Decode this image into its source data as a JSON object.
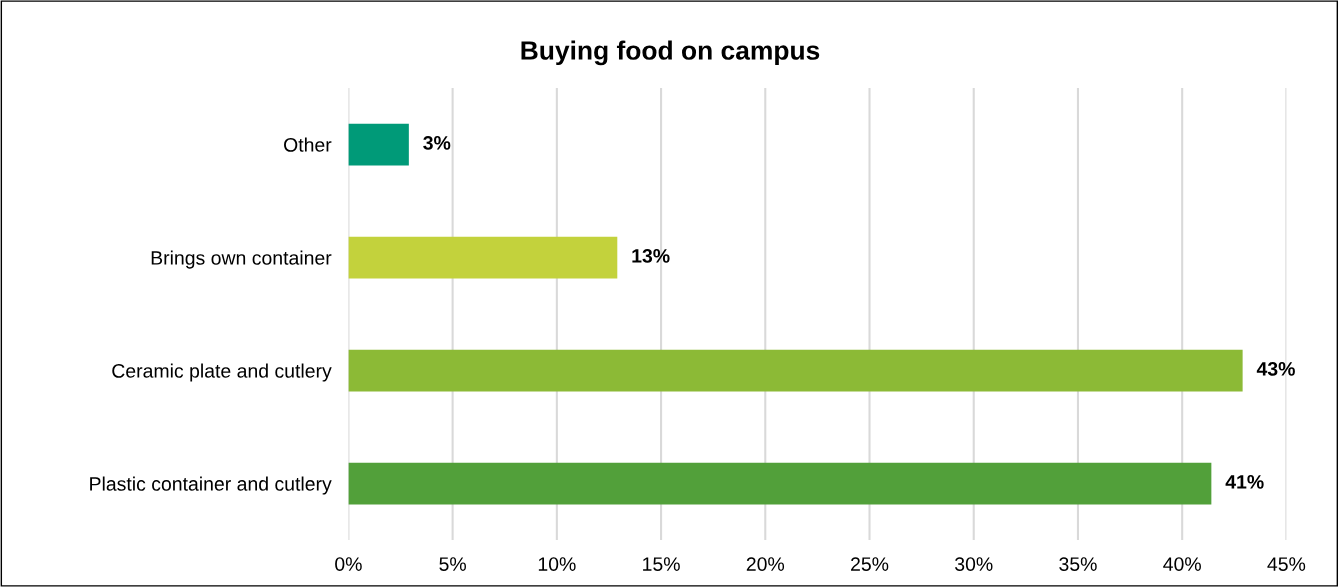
{
  "chart_data": {
    "type": "bar",
    "orientation": "horizontal",
    "title": "Buying food on campus",
    "categories": [
      "Other",
      "Brings own container",
      "Ceramic plate and cutlery",
      "Plastic container and cutlery"
    ],
    "values": [
      2.9,
      12.9,
      42.9,
      41.4
    ],
    "colors": [
      "#009a78",
      "#c3d23c",
      "#8cba36",
      "#52a03a"
    ],
    "value_labels": [
      "3%",
      "13%",
      "43%",
      "41%"
    ],
    "xlim": [
      0,
      45
    ],
    "xticks": [
      {
        "value": 0,
        "label": "0%"
      },
      {
        "value": 5,
        "label": "5%"
      },
      {
        "value": 10,
        "label": "10%"
      },
      {
        "value": 15,
        "label": "15%"
      },
      {
        "value": 20,
        "label": "20%"
      },
      {
        "value": 25,
        "label": "25%"
      },
      {
        "value": 30,
        "label": "30%"
      },
      {
        "value": 35,
        "label": "35%"
      },
      {
        "value": 40,
        "label": "40%"
      },
      {
        "value": 45,
        "label": "45%"
      }
    ],
    "grid": "x"
  }
}
